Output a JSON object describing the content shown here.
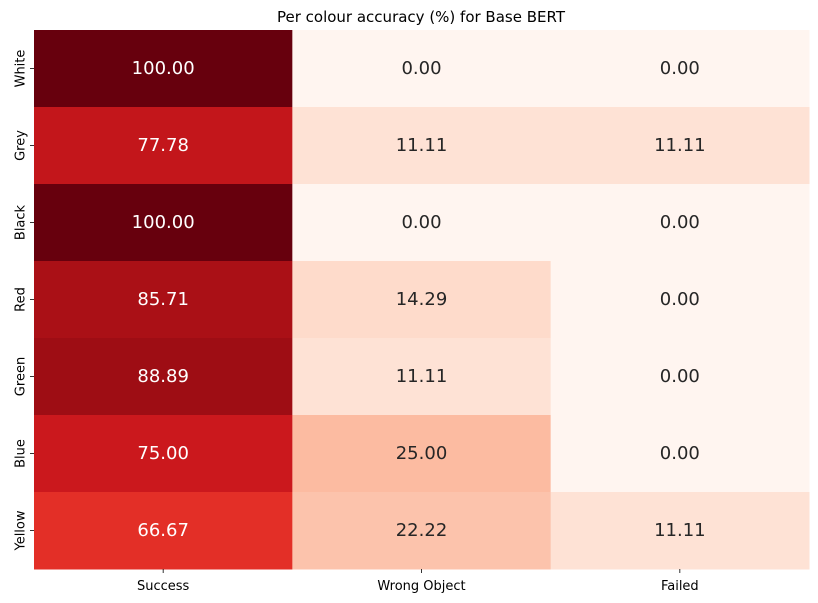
{
  "chart_data": {
    "type": "heatmap",
    "title": "Per colour accuracy (%) for Base BERT",
    "xlabel": "",
    "ylabel": "",
    "columns": [
      "Success",
      "Wrong Object",
      "Failed"
    ],
    "rows": [
      "White",
      "Grey",
      "Black",
      "Red",
      "Green",
      "Blue",
      "Yellow"
    ],
    "values": [
      [
        100.0,
        0.0,
        0.0
      ],
      [
        77.78,
        11.11,
        11.11
      ],
      [
        100.0,
        0.0,
        0.0
      ],
      [
        85.71,
        14.29,
        0.0
      ],
      [
        88.89,
        11.11,
        0.0
      ],
      [
        75.0,
        25.0,
        0.0
      ],
      [
        66.67,
        22.22,
        11.11
      ]
    ],
    "value_format": "2 decimals",
    "colormap": "Reds",
    "vmin": 0,
    "vmax": 100,
    "colorbar": false,
    "grid": false
  }
}
